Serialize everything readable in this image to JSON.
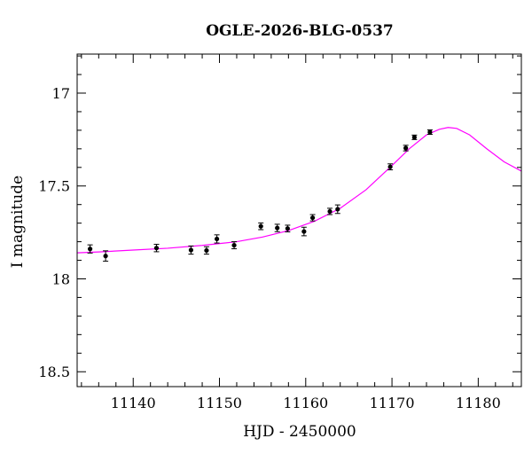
{
  "chart_data": {
    "type": "scatter",
    "title": "OGLE-2026-BLG-0537",
    "xlabel": "HJD - 2450000",
    "ylabel": "I magnitude",
    "xlim": [
      11133.5,
      11185
    ],
    "ylim": [
      18.58,
      16.79
    ],
    "y_inverted": true,
    "xticks": {
      "labeled": [
        11140,
        11150,
        11160,
        11170,
        11180
      ],
      "minor_step": 2
    },
    "yticks": {
      "labeled": [
        "17",
        "17.5",
        "18",
        "18.5"
      ],
      "labeled_values": [
        17,
        17.5,
        18,
        18.5
      ],
      "minor_step": 0.1
    },
    "grid": false,
    "colors": {
      "model": "#ff00ff",
      "points": "#000000",
      "axes": "#000000"
    },
    "series": [
      {
        "type": "scatter_with_errorbars",
        "x": [
          11135.0,
          11136.8,
          11142.7,
          11146.7,
          11148.5,
          11149.7,
          11151.7,
          11154.8,
          11156.7,
          11157.9,
          11159.8,
          11160.8,
          11162.8,
          11163.7,
          11169.8,
          11171.6,
          11172.6,
          11174.4
        ],
        "y": [
          17.839,
          17.877,
          17.834,
          17.845,
          17.847,
          17.785,
          17.819,
          17.717,
          17.726,
          17.729,
          17.745,
          17.671,
          17.637,
          17.625,
          17.397,
          17.296,
          17.238,
          17.21
        ],
        "err": [
          0.022,
          0.028,
          0.02,
          0.022,
          0.02,
          0.022,
          0.019,
          0.018,
          0.02,
          0.018,
          0.023,
          0.017,
          0.017,
          0.023,
          0.016,
          0.015,
          0.012,
          0.012
        ]
      },
      {
        "type": "line",
        "x": [
          11133.5,
          11136,
          11140,
          11144,
          11148,
          11152,
          11155,
          11158,
          11161,
          11164,
          11167,
          11170,
          11172,
          11174,
          11175.5,
          11176.5,
          11177.5,
          11179,
          11181,
          11183,
          11185
        ],
        "y": [
          17.86,
          17.855,
          17.845,
          17.835,
          17.82,
          17.8,
          17.775,
          17.74,
          17.69,
          17.62,
          17.52,
          17.39,
          17.3,
          17.225,
          17.195,
          17.185,
          17.19,
          17.225,
          17.3,
          17.37,
          17.42
        ]
      }
    ]
  }
}
